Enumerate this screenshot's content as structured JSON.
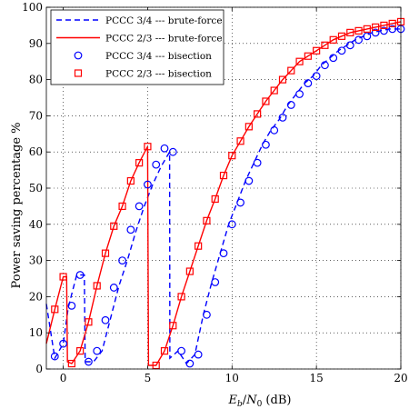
{
  "chart_data": {
    "type": "line",
    "xlabel": "E_b/N_0 (dB)",
    "xlabel_parts": {
      "E": "E",
      "b": "b",
      "slash": "/",
      "N": "N",
      "zero": "0",
      "unit": " (dB)"
    },
    "ylabel": "Power saving percentage %",
    "xlim": [
      -1,
      20
    ],
    "ylim": [
      0,
      100
    ],
    "xticks": [
      0,
      5,
      10,
      15,
      20
    ],
    "yticks": [
      0,
      10,
      20,
      30,
      40,
      50,
      60,
      70,
      80,
      90,
      100
    ],
    "grid": true,
    "legend_position": "top-left",
    "series": [
      {
        "name": "PCCC 3/4 --- brute-force",
        "color": "#0000ff",
        "style": "dashed",
        "x": [
          -1,
          -0.5,
          0,
          0.3,
          0.8,
          1.25,
          1.3,
          1.8,
          2.3,
          2.8,
          3.3,
          3.8,
          4.3,
          4.8,
          5.3,
          5.8,
          6.3,
          6.32,
          6.8,
          7.3,
          7.8,
          8.3,
          8.8,
          9.3,
          9.8,
          10.3,
          10.8,
          11.3,
          11.8,
          12.3,
          12.8,
          13.3,
          13.8,
          14.3,
          14.8,
          15.3,
          15.8,
          16.3,
          16.8,
          17.3,
          17.8,
          18.3,
          18.8,
          19.3,
          19.8,
          20
        ],
        "y": [
          18,
          3,
          7,
          17,
          26,
          26,
          2,
          2,
          5,
          14,
          23,
          30,
          38,
          45,
          51,
          56,
          60,
          3,
          5,
          1.5,
          4,
          15,
          24,
          32,
          40,
          46,
          52,
          57,
          62,
          66,
          69,
          73,
          76,
          79,
          81,
          84,
          86,
          88,
          89.5,
          91,
          92,
          93,
          93.5,
          94,
          94,
          94
        ]
      },
      {
        "name": "PCCC 2/3 --- brute-force",
        "color": "#ff0000",
        "style": "solid",
        "x": [
          -1,
          -0.5,
          0,
          0.2,
          0.25,
          0.5,
          1.0,
          1.5,
          2.0,
          2.5,
          3.0,
          3.5,
          4.0,
          4.5,
          5.0,
          5.05,
          5.5,
          6.0,
          6.5,
          7.0,
          7.5,
          8.0,
          8.5,
          9.0,
          9.5,
          10.0,
          10.5,
          11.0,
          11.5,
          12.0,
          12.5,
          13.0,
          13.5,
          14.0,
          14.5,
          15.0,
          15.5,
          16.0,
          16.5,
          17.0,
          17.5,
          18.0,
          18.5,
          19.0,
          19.5,
          20
        ],
        "y": [
          7,
          16.5,
          25.5,
          25.5,
          2,
          1.5,
          5,
          13,
          23,
          32,
          39.5,
          45,
          52,
          57,
          61.5,
          1,
          1,
          5,
          12,
          20,
          27,
          34,
          41,
          47,
          53.5,
          59,
          63,
          67,
          70.5,
          74,
          77,
          80,
          82.5,
          85,
          86.5,
          88,
          89.5,
          91,
          92,
          93,
          93.5,
          94,
          94.5,
          95,
          95.5,
          96
        ]
      },
      {
        "name": "PCCC 3/4 --- bisection",
        "color": "#0000ff",
        "marker": "circle",
        "x": [
          -0.5,
          0,
          0.5,
          1.0,
          1.5,
          2.0,
          2.5,
          3.0,
          3.5,
          4.0,
          4.5,
          5.0,
          5.5,
          6.0,
          6.5,
          7.0,
          7.5,
          8.0,
          8.5,
          9.0,
          9.5,
          10.0,
          10.5,
          11.0,
          11.5,
          12.0,
          12.5,
          13.0,
          13.5,
          14.0,
          14.5,
          15.0,
          15.5,
          16.0,
          16.5,
          17.0,
          17.5,
          18.0,
          18.5,
          19.0,
          19.5,
          20
        ],
        "y": [
          3.5,
          7,
          17.5,
          26,
          2,
          5,
          13.5,
          22.5,
          30,
          38.5,
          45,
          51,
          56.5,
          61,
          60,
          5,
          1.5,
          4,
          15,
          24,
          32,
          40,
          46,
          52,
          57,
          62,
          66,
          69.5,
          73,
          76,
          79,
          81,
          84,
          86,
          88,
          89.5,
          91,
          92,
          93,
          93.5,
          94,
          94
        ]
      },
      {
        "name": "PCCC 2/3 --- bisection",
        "color": "#ff0000",
        "marker": "square",
        "x": [
          -0.5,
          0,
          0.5,
          1.0,
          1.5,
          2.0,
          2.5,
          3.0,
          3.5,
          4.0,
          4.5,
          5.0,
          5.5,
          6.0,
          6.5,
          7.0,
          7.5,
          8.0,
          8.5,
          9.0,
          9.5,
          10.0,
          10.5,
          11.0,
          11.5,
          12.0,
          12.5,
          13.0,
          13.5,
          14.0,
          14.5,
          15.0,
          15.5,
          16.0,
          16.5,
          17.0,
          17.5,
          18.0,
          18.5,
          19.0,
          19.5,
          20
        ],
        "y": [
          16.5,
          25.5,
          1.5,
          5,
          13,
          23,
          32,
          39.5,
          45,
          52,
          57,
          61.5,
          1,
          5,
          12,
          20,
          27,
          34,
          41,
          47,
          53.5,
          59,
          63,
          67,
          70.5,
          74,
          77,
          80,
          82.5,
          85,
          86.5,
          88,
          89.5,
          91,
          92,
          93,
          93.5,
          94,
          94.5,
          95,
          95.5,
          96
        ]
      }
    ]
  }
}
